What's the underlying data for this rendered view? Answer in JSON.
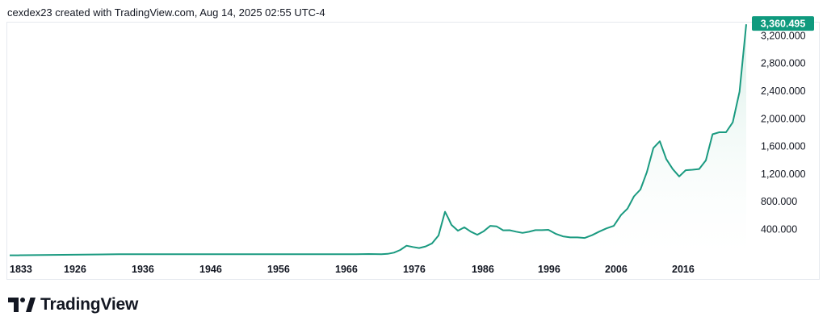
{
  "header": {
    "text": "cexdex23 created with TradingView.com, Aug 14, 2025 02:55 UTC-4"
  },
  "brand": {
    "name": "TradingView",
    "icon": "tradingview-logo-icon"
  },
  "colors": {
    "line": "#1a9a80",
    "fill_top": "#d9efe8",
    "label_bg": "#0f9a7e",
    "text": "#131722",
    "border": "#e6e9ef"
  },
  "chart_data": {
    "type": "area",
    "title": "",
    "xlabel": "",
    "ylabel": "",
    "x_tick_labels": [
      "1833",
      "1926",
      "1936",
      "1946",
      "1956",
      "1966",
      "1976",
      "1986",
      "1996",
      "2006",
      "2016"
    ],
    "y_ticks": [
      "400.000",
      "800.000",
      "1,200.000",
      "1,600.000",
      "2,000.000",
      "2,400.000",
      "2,800.000",
      "3,200.000"
    ],
    "ylim": [
      0,
      3400
    ],
    "last_value_label": "3,360.495",
    "last_value": 3360.495,
    "grid": false,
    "legend": "none",
    "series": [
      {
        "values": [
          [
            1833,
            20
          ],
          [
            1900,
            20
          ],
          [
            1915,
            21
          ],
          [
            1920,
            21
          ],
          [
            1926,
            21
          ],
          [
            1934,
            35
          ],
          [
            1936,
            35
          ],
          [
            1946,
            35
          ],
          [
            1956,
            35
          ],
          [
            1966,
            35
          ],
          [
            1968,
            38
          ],
          [
            1970,
            36
          ],
          [
            1971,
            41
          ],
          [
            1972,
            58
          ],
          [
            1973,
            97
          ],
          [
            1974,
            159
          ],
          [
            1975,
            140
          ],
          [
            1976,
            125
          ],
          [
            1977,
            148
          ],
          [
            1978,
            193
          ],
          [
            1979,
            307
          ],
          [
            1980,
            650
          ],
          [
            1980.5,
            560
          ],
          [
            1981,
            460
          ],
          [
            1982,
            376
          ],
          [
            1983,
            424
          ],
          [
            1984,
            361
          ],
          [
            1985,
            317
          ],
          [
            1986,
            368
          ],
          [
            1987,
            446
          ],
          [
            1988,
            437
          ],
          [
            1989,
            381
          ],
          [
            1990,
            383
          ],
          [
            1991,
            362
          ],
          [
            1992,
            344
          ],
          [
            1993,
            360
          ],
          [
            1994,
            384
          ],
          [
            1995,
            384
          ],
          [
            1996,
            388
          ],
          [
            1997,
            331
          ],
          [
            1998,
            294
          ],
          [
            1999,
            279
          ],
          [
            2000,
            279
          ],
          [
            2001,
            271
          ],
          [
            2002,
            310
          ],
          [
            2003,
            363
          ],
          [
            2004,
            409
          ],
          [
            2005,
            445
          ],
          [
            2006,
            603
          ],
          [
            2007,
            695
          ],
          [
            2008,
            872
          ],
          [
            2009,
            972
          ],
          [
            2010,
            1224
          ],
          [
            2011,
            1571
          ],
          [
            2012,
            1669
          ],
          [
            2013,
            1411
          ],
          [
            2014,
            1266
          ],
          [
            2015,
            1160
          ],
          [
            2016,
            1250
          ],
          [
            2017,
            1257
          ],
          [
            2018,
            1268
          ],
          [
            2019,
            1393
          ],
          [
            2020,
            1770
          ],
          [
            2021,
            1799
          ],
          [
            2022,
            1800
          ],
          [
            2023,
            1943
          ],
          [
            2024,
            2386
          ],
          [
            2025,
            3360.495
          ]
        ]
      }
    ]
  }
}
